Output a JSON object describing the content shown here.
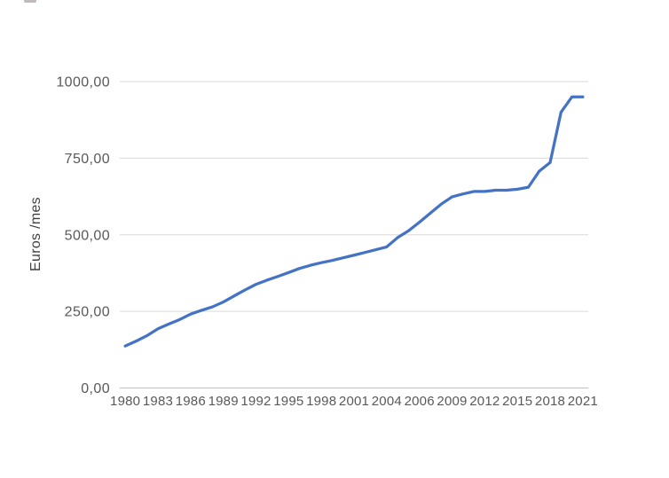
{
  "colors": {
    "series_line": "#4472C4",
    "gridline": "#D9D9D9",
    "axis_line": "#BFBFBF",
    "tick_text": "#595959",
    "axis_title_text": "#404040"
  },
  "chart_data": {
    "type": "line",
    "title": "",
    "xlabel": "",
    "ylabel": "Euros /mes",
    "legend": "none",
    "grid": true,
    "ylim": [
      0,
      1000
    ],
    "ytick_values": [
      0,
      250,
      500,
      750,
      1000
    ],
    "ytick_labels": [
      "0,00",
      "250,00",
      "500,00",
      "750,00",
      "1000,00"
    ],
    "xtick_every": 3,
    "xtick_labels": [
      "1980",
      "1983",
      "1986",
      "1989",
      "1992",
      "1995",
      "1998",
      "2001",
      "2004",
      "2006",
      "2009",
      "2012",
      "2015",
      "2018",
      "2021"
    ],
    "x": [
      1980,
      1981,
      1982,
      1983,
      1984,
      1985,
      1986,
      1987,
      1988,
      1989,
      1990,
      1991,
      1992,
      1993,
      1994,
      1995,
      1996,
      1997,
      1998,
      1999,
      2000,
      2001,
      2002,
      2003,
      2004,
      2004,
      2005,
      2006,
      2007,
      2008,
      2009,
      2010,
      2011,
      2012,
      2013,
      2014,
      2015,
      2016,
      2017,
      2018,
      2019,
      2020,
      2021
    ],
    "values": [
      136.97,
      152.93,
      170.93,
      193.29,
      208.79,
      223.4,
      241.25,
      253.33,
      264.69,
      280.55,
      300.57,
      320.04,
      338.25,
      351.77,
      364.03,
      376.83,
      390.18,
      400.45,
      408.93,
      416.32,
      424.8,
      433.45,
      442.2,
      451.2,
      460.5,
      490.8,
      513.0,
      540.9,
      570.6,
      600.0,
      624.0,
      633.3,
      641.4,
      641.4,
      645.3,
      645.3,
      648.6,
      655.2,
      707.7,
      735.9,
      900.0,
      950.0,
      950.0
    ],
    "series_name": "Euros /mes"
  }
}
